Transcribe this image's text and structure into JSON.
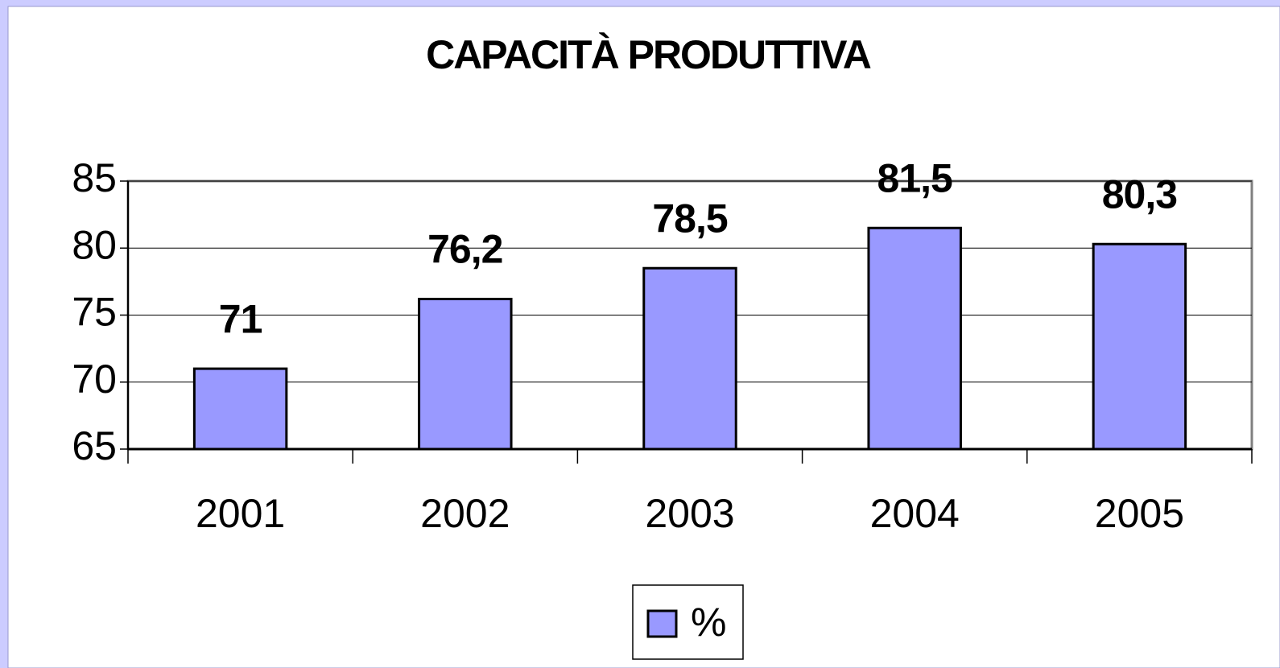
{
  "chart_data": {
    "type": "bar",
    "title": "CAPACITÀ PRODUTTIVA",
    "categories": [
      "2001",
      "2002",
      "2003",
      "2004",
      "2005"
    ],
    "series": [
      {
        "name": "%",
        "color": "#9999ff",
        "values": [
          71,
          76.2,
          78.5,
          81.5,
          80.3
        ],
        "value_labels": [
          "71",
          "76,2",
          "78,5",
          "81,5",
          "80,3"
        ]
      }
    ],
    "ylim": [
      65,
      85
    ],
    "yticks": [
      65,
      70,
      75,
      80,
      85
    ],
    "grid": true,
    "legend": "bottom"
  }
}
